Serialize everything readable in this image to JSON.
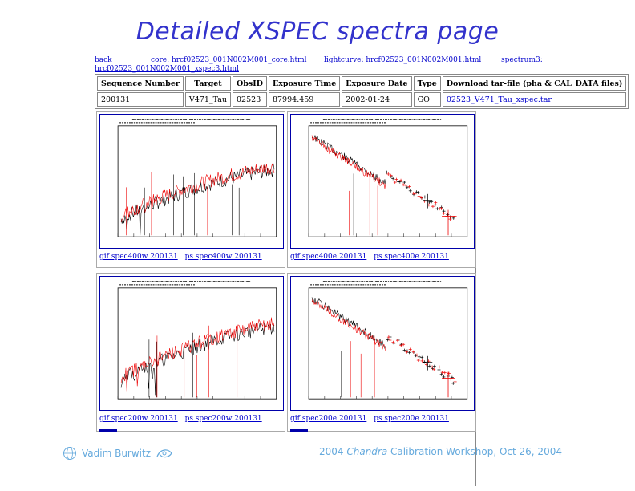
{
  "slide": {
    "title": "Detailed XSPEC spectra page"
  },
  "nav": {
    "back": "back",
    "core": "core: hrcf02523_001N002M001_core.html",
    "lightcurve": "lightcurve: hrcf02523_001N002M001.html",
    "spectrum3": "spectrum3:",
    "spectrum3_cont": "hrcf02523_001N002M001_xspec3.html"
  },
  "table": {
    "headers": [
      "Sequence Number",
      "Target",
      "ObsID",
      "Exposure Time",
      "Exposure Date",
      "Type",
      "Download tar-file (pha & CAL_DATA files)"
    ],
    "row": [
      "200131",
      "V471_Tau",
      "02523",
      "87994.459",
      "2002-01-24",
      "GO",
      "02523_V471_Tau_xspec.tar"
    ]
  },
  "plots": [
    {
      "links": [
        "gif spec400w 200131",
        "ps spec400w 200131"
      ]
    },
    {
      "links": [
        "gif spec400e 200131",
        "ps spec400e 200131"
      ]
    },
    {
      "links": [
        "gif spec200w 200131",
        "ps spec200w 200131"
      ]
    },
    {
      "links": [
        "gif spec200e 200131",
        "ps spec200e 200131"
      ]
    }
  ],
  "footer": {
    "author": "Vadim Burwitz",
    "event_prefix": "2004 ",
    "event_em": "Chandra",
    "event_suffix": " Calibration Workshop, Oct 26, 2004"
  },
  "colors": {
    "title": "#3333cc",
    "link": "#0000cc",
    "footer": "#66aadd",
    "data_red": "#ee0000",
    "data_black": "#000000"
  }
}
